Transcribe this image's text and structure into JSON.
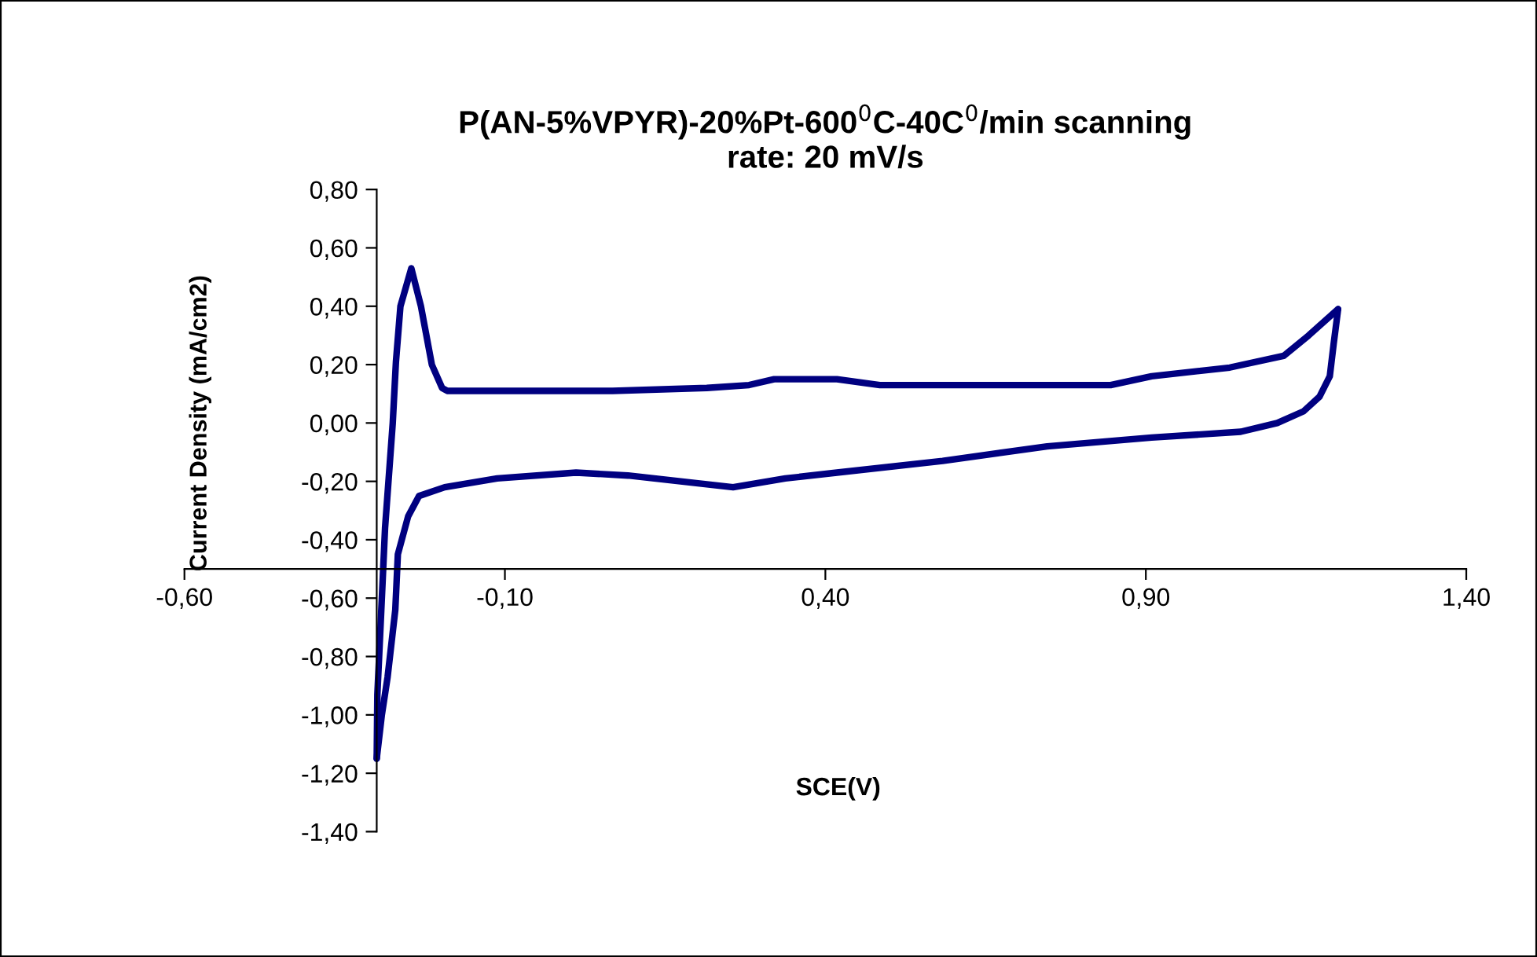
{
  "chart_data": {
    "type": "line",
    "title": "P(AN-5%VPYR)-20%Pt-600$^{0}$C-40C$^{0}$/min scanning\nrate: 20 mV/s",
    "xlabel": "SCE(V)",
    "ylabel": "Current Density (mA/cm2)",
    "xlim": [
      -0.6,
      1.4
    ],
    "ylim": [
      -1.4,
      0.8
    ],
    "xticks": [
      {
        "value": -0.6,
        "label": "-0,60"
      },
      {
        "value": -0.1,
        "label": "-0,10"
      },
      {
        "value": 0.4,
        "label": "0,40"
      },
      {
        "value": 0.9,
        "label": "0,90"
      },
      {
        "value": 1.4,
        "label": "1,40"
      }
    ],
    "yticks": [
      {
        "value": 0.8,
        "label": "0,80"
      },
      {
        "value": 0.6,
        "label": "0,60"
      },
      {
        "value": 0.4,
        "label": "0,40"
      },
      {
        "value": 0.2,
        "label": "0,20"
      },
      {
        "value": 0.0,
        "label": "0,00"
      },
      {
        "value": -0.2,
        "label": "-0,20"
      },
      {
        "value": -0.4,
        "label": "-0,40"
      },
      {
        "value": -0.6,
        "label": "-0,60"
      },
      {
        "value": -0.8,
        "label": "-0,80"
      },
      {
        "value": -1.0,
        "label": "-1,00"
      },
      {
        "value": -1.2,
        "label": "-1,20"
      },
      {
        "value": -1.4,
        "label": "-1,40"
      }
    ],
    "grid": false,
    "legend": false,
    "marker": "none",
    "line_style": "solid",
    "series": [
      {
        "color": "#000080",
        "x": [
          -0.3,
          -0.299,
          -0.292,
          -0.287,
          -0.275,
          -0.27,
          -0.263,
          -0.246,
          -0.231,
          -0.214,
          -0.198,
          -0.19,
          0.068,
          0.215,
          0.281,
          0.32,
          0.418,
          0.485,
          0.845,
          0.909,
          1.031,
          1.115,
          1.154,
          1.2
        ],
        "values": [
          -1.15,
          -0.93,
          -0.6,
          -0.36,
          0.0,
          0.21,
          0.4,
          0.53,
          0.4,
          0.2,
          0.12,
          0.11,
          0.11,
          0.12,
          0.13,
          0.15,
          0.15,
          0.13,
          0.13,
          0.16,
          0.19,
          0.23,
          0.3,
          0.39
        ]
      },
      {
        "color": "#000080",
        "x": [
          1.2,
          1.193,
          1.187,
          1.171,
          1.146,
          1.105,
          1.048,
          0.909,
          0.746,
          0.583,
          0.418,
          0.3375,
          0.256,
          0.174,
          0.092,
          0.011,
          -0.112,
          -0.194,
          -0.234,
          -0.251,
          -0.267,
          -0.271,
          -0.283,
          -0.292,
          -0.3
        ],
        "values": [
          0.39,
          0.27,
          0.16,
          0.09,
          0.04,
          0.0,
          -0.03,
          -0.05,
          -0.08,
          -0.13,
          -0.17,
          -0.19,
          -0.22,
          -0.2,
          -0.18,
          -0.17,
          -0.19,
          -0.22,
          -0.25,
          -0.32,
          -0.45,
          -0.64,
          -0.87,
          -1.0,
          -1.15
        ]
      }
    ]
  }
}
